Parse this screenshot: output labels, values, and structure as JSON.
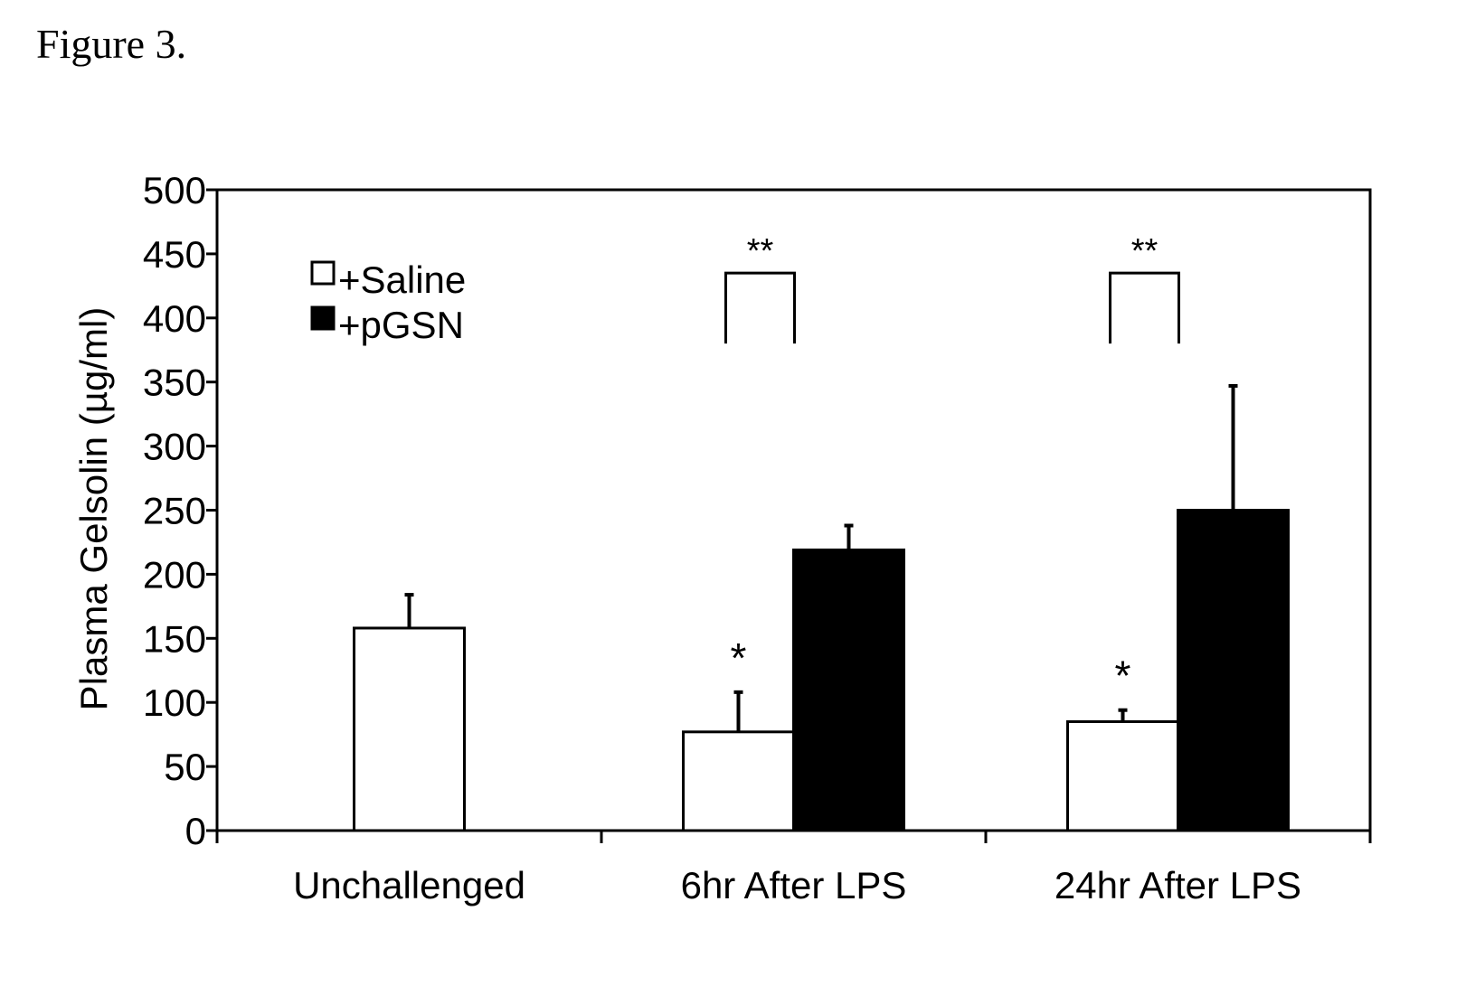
{
  "figure_label": "Figure 3.",
  "chart_data": {
    "type": "bar",
    "title": "",
    "xlabel": "",
    "ylabel": "Plasma Gelsolin (µg/ml)",
    "ylim": [
      0,
      500
    ],
    "yticks": [
      0,
      50,
      100,
      150,
      200,
      250,
      300,
      350,
      400,
      450,
      500
    ],
    "categories": [
      "Unchallenged",
      "6hr After LPS",
      "24hr After LPS"
    ],
    "series": [
      {
        "name": "+Saline",
        "color": "#ffffff",
        "values": [
          158,
          77,
          85
        ],
        "errors": [
          26,
          31,
          9
        ]
      },
      {
        "name": "+pGSN",
        "color": "#000000",
        "values": [
          null,
          219,
          250
        ],
        "errors": [
          null,
          19,
          97
        ]
      }
    ],
    "annotations": [
      {
        "text": "*",
        "category": "6hr After LPS",
        "series": "+Saline"
      },
      {
        "text": "*",
        "category": "24hr After LPS",
        "series": "+Saline"
      },
      {
        "text": "**",
        "category": "6hr After LPS",
        "bracket": true
      },
      {
        "text": "**",
        "category": "24hr After LPS",
        "bracket": true
      }
    ],
    "legend": {
      "position": "top-left"
    },
    "grid": false
  }
}
